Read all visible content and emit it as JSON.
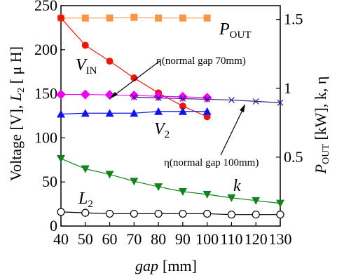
{
  "chart_data": {
    "type": "line",
    "x": [
      40,
      50,
      60,
      70,
      80,
      90,
      100,
      110,
      120,
      130
    ],
    "xlabel_main": "gap",
    "xlabel_unit": "[mm]",
    "ylabel_left": {
      "base": "Voltage [V], ",
      "l": "L",
      "l_sub": "2",
      "unit": " [ μ H]"
    },
    "ylabel_right": {
      "p": "P",
      "p_sub": "OUT",
      "rest": " [kW], k,  η"
    },
    "xlim": [
      40,
      130
    ],
    "ylim_left": [
      0,
      250
    ],
    "ylim_right": [
      0,
      1.6
    ],
    "xticks": [
      "40",
      "50",
      "60",
      "70",
      "80",
      "90",
      "100",
      "110",
      "120",
      "130"
    ],
    "yticks_left": [
      "0",
      "50",
      "100",
      "150",
      "200",
      "250"
    ],
    "yticks_right": [
      "0.5",
      "1",
      "1.5"
    ],
    "series": [
      {
        "name": "P_OUT",
        "axis": "right",
        "color": "#f79646",
        "marker": "square",
        "x": [
          40,
          50,
          60,
          70,
          80,
          90,
          100
        ],
        "y": [
          1.51,
          1.51,
          1.51,
          1.515,
          1.51,
          1.51,
          1.51
        ]
      },
      {
        "name": "V_IN",
        "axis": "left",
        "color": "#e8180e",
        "marker": "circle",
        "x": [
          40,
          50,
          60,
          70,
          80,
          90,
          100
        ],
        "y": [
          236,
          205,
          187,
          168,
          151,
          136,
          124
        ]
      },
      {
        "name": "η (normal gap 70mm)",
        "axis": "right",
        "color": "#f000f0",
        "marker": "diamond",
        "x": [
          40,
          50,
          60,
          70,
          80,
          90,
          100
        ],
        "y": [
          0.955,
          0.955,
          0.952,
          0.948,
          0.942,
          0.938,
          0.932
        ]
      },
      {
        "name": "η (normal gap 100mm)",
        "axis": "right",
        "color": "#3b1b8c",
        "marker": "x",
        "x": [
          70,
          80,
          90,
          100,
          110,
          120,
          130
        ],
        "y": [
          0.935,
          0.93,
          0.925,
          0.92,
          0.915,
          0.905,
          0.895
        ]
      },
      {
        "name": "V_2",
        "axis": "left",
        "color": "#1414e6",
        "marker": "triangle-up",
        "x": [
          40,
          50,
          60,
          70,
          80,
          90,
          100
        ],
        "y": [
          127,
          128,
          128,
          128,
          130,
          130,
          130
        ]
      },
      {
        "name": "k",
        "axis": "right",
        "color": "#14821e",
        "marker": "triangle-down",
        "x": [
          40,
          50,
          60,
          70,
          80,
          90,
          100,
          110,
          120,
          130
        ],
        "y": [
          0.49,
          0.415,
          0.375,
          0.325,
          0.285,
          0.25,
          0.23,
          0.205,
          0.185,
          0.165
        ]
      },
      {
        "name": "L_2",
        "axis": "left",
        "color": "#000000",
        "marker": "circle-open",
        "x": [
          40,
          50,
          60,
          70,
          80,
          90,
          100,
          110,
          120,
          130
        ],
        "y": [
          16,
          15,
          14,
          14,
          14,
          14,
          14,
          13,
          13,
          13
        ]
      }
    ],
    "annotations": {
      "pout": {
        "p": "P",
        "sub": "OUT"
      },
      "vin": {
        "v": "V",
        "sub": "IN"
      },
      "v2": {
        "v": "V",
        "sub": "2"
      },
      "l2": {
        "l": "L",
        "sub": "2"
      },
      "k": "k",
      "eta70": "η(normal gap 70mm)",
      "eta100": "η(normal gap 100mm)"
    }
  }
}
